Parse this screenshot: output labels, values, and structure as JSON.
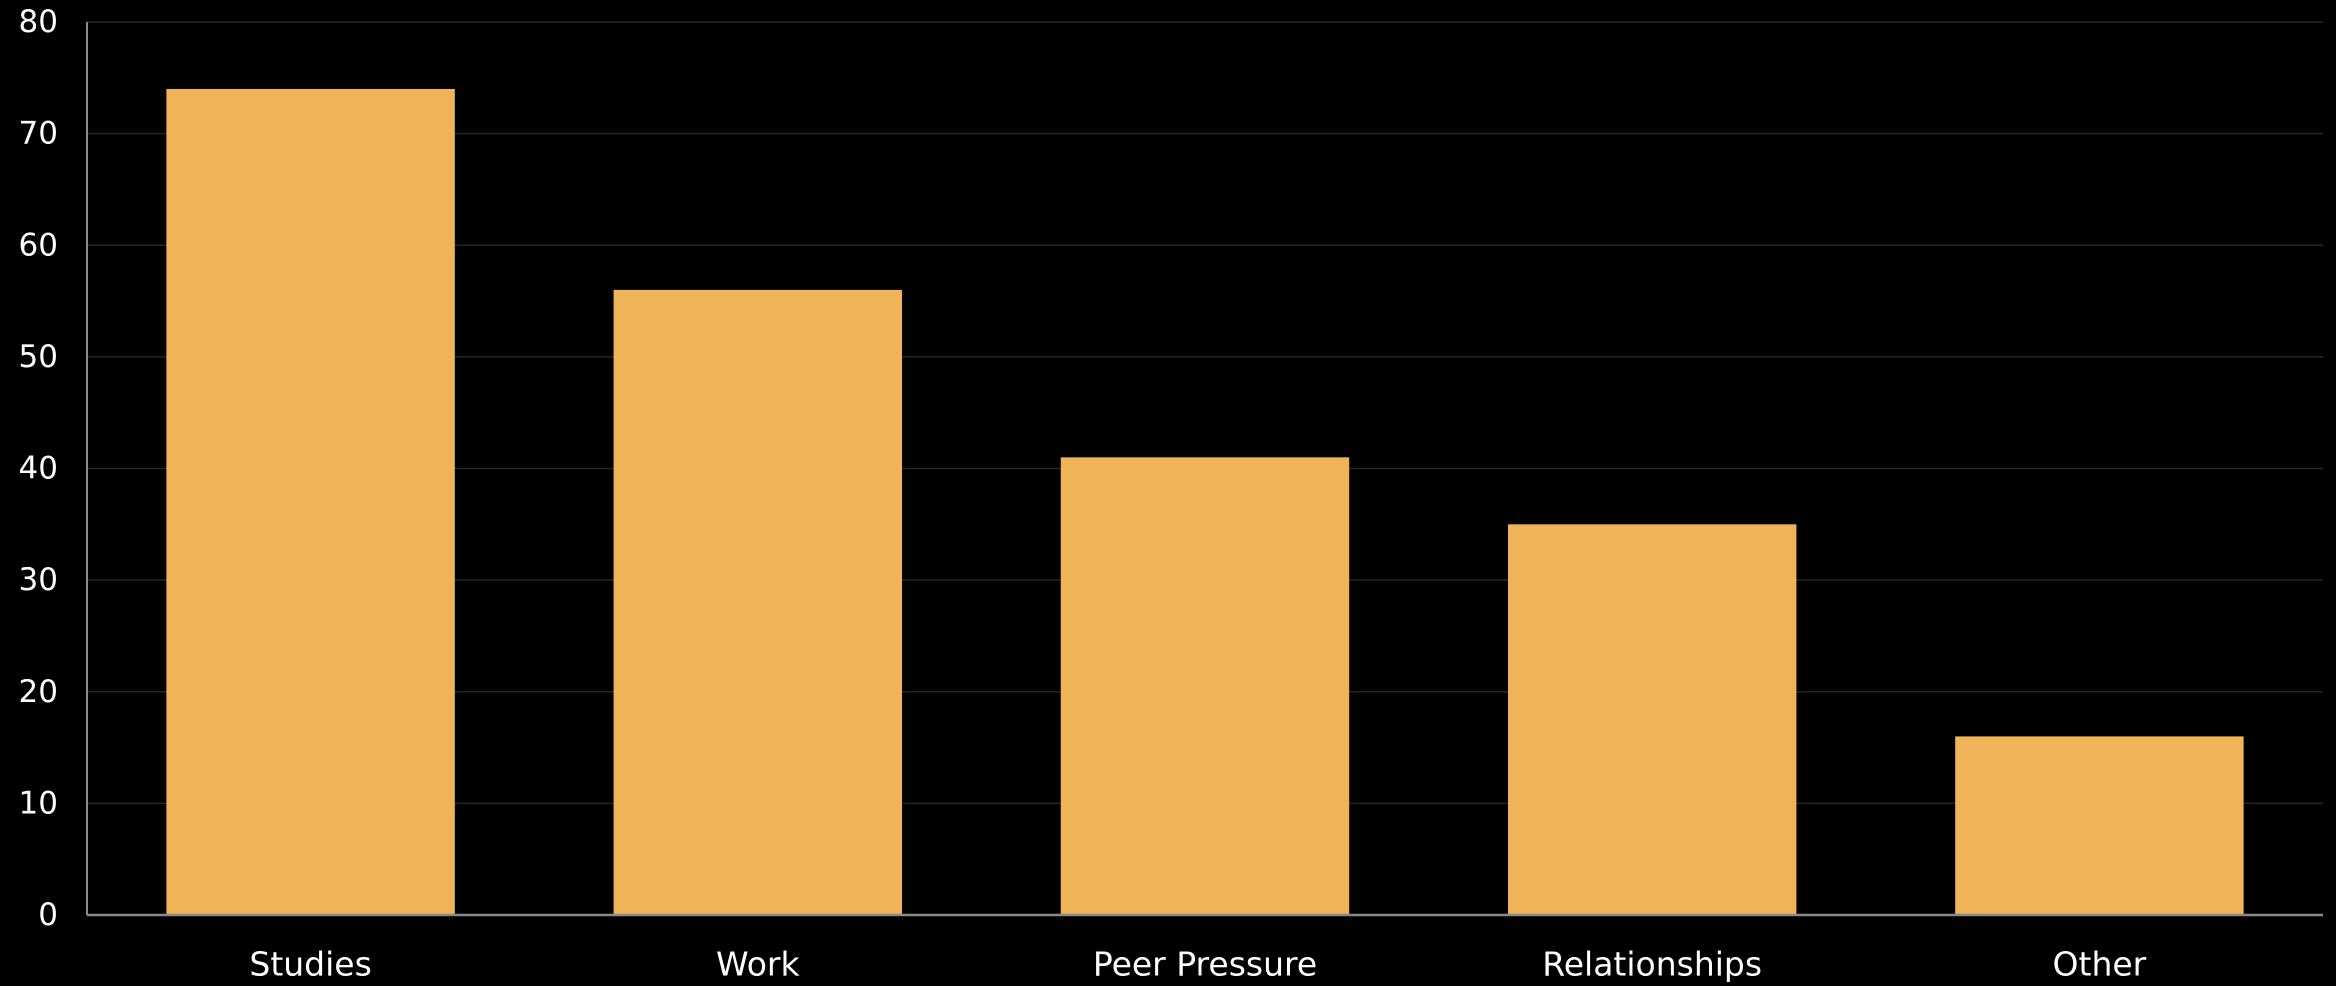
{
  "chart_data": {
    "type": "bar",
    "title": "",
    "xlabel": "",
    "ylabel": "",
    "categories": [
      "Studies",
      "Work",
      "Peer Pressure",
      "Relationships",
      "Other"
    ],
    "values": [
      74,
      56,
      41,
      35,
      16
    ],
    "ylim": [
      0,
      80
    ],
    "yticks": [
      "0",
      "10",
      "20",
      "30",
      "40",
      "50",
      "60",
      "70",
      "80"
    ],
    "grid": true,
    "legend": "none",
    "colors": {
      "background": "#000000",
      "bar": "#EFB458",
      "gridline": "#262626",
      "axis": "#8a8a8a",
      "text": "#ffffff"
    }
  }
}
